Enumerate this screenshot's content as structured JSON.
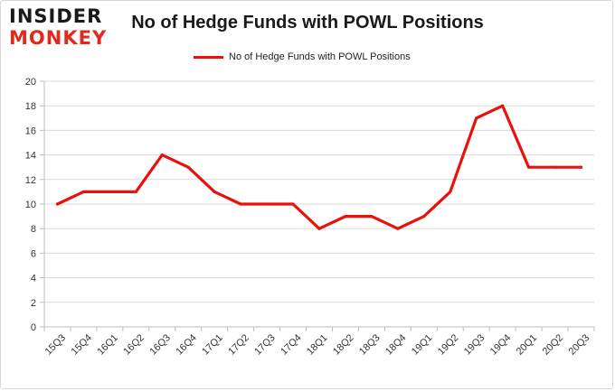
{
  "logo": {
    "top": "INSIDER",
    "bottom": "MONKEY"
  },
  "chart_data": {
    "type": "line",
    "title": "No of Hedge Funds with POWL Positions",
    "xlabel": "",
    "ylabel": "",
    "categories": [
      "15Q3",
      "15Q4",
      "16Q1",
      "16Q2",
      "16Q3",
      "16Q4",
      "17Q1",
      "17Q2",
      "17Q3",
      "17Q4",
      "18Q1",
      "18Q2",
      "18Q3",
      "18Q4",
      "19Q1",
      "19Q2",
      "19Q3",
      "19Q4",
      "20Q1",
      "20Q2",
      "20Q3"
    ],
    "series": [
      {
        "name": "No of Hedge Funds with POWL Positions",
        "color": "#e8120c",
        "values": [
          10,
          11,
          11,
          11,
          14,
          13,
          11,
          10,
          10,
          10,
          8,
          9,
          9,
          8,
          9,
          11,
          17,
          18,
          13,
          13,
          13
        ]
      }
    ],
    "yticks": [
      0,
      2,
      4,
      6,
      8,
      10,
      12,
      14,
      16,
      18,
      20
    ],
    "ylim": [
      0,
      20
    ],
    "grid": true,
    "legend": "top-center"
  }
}
